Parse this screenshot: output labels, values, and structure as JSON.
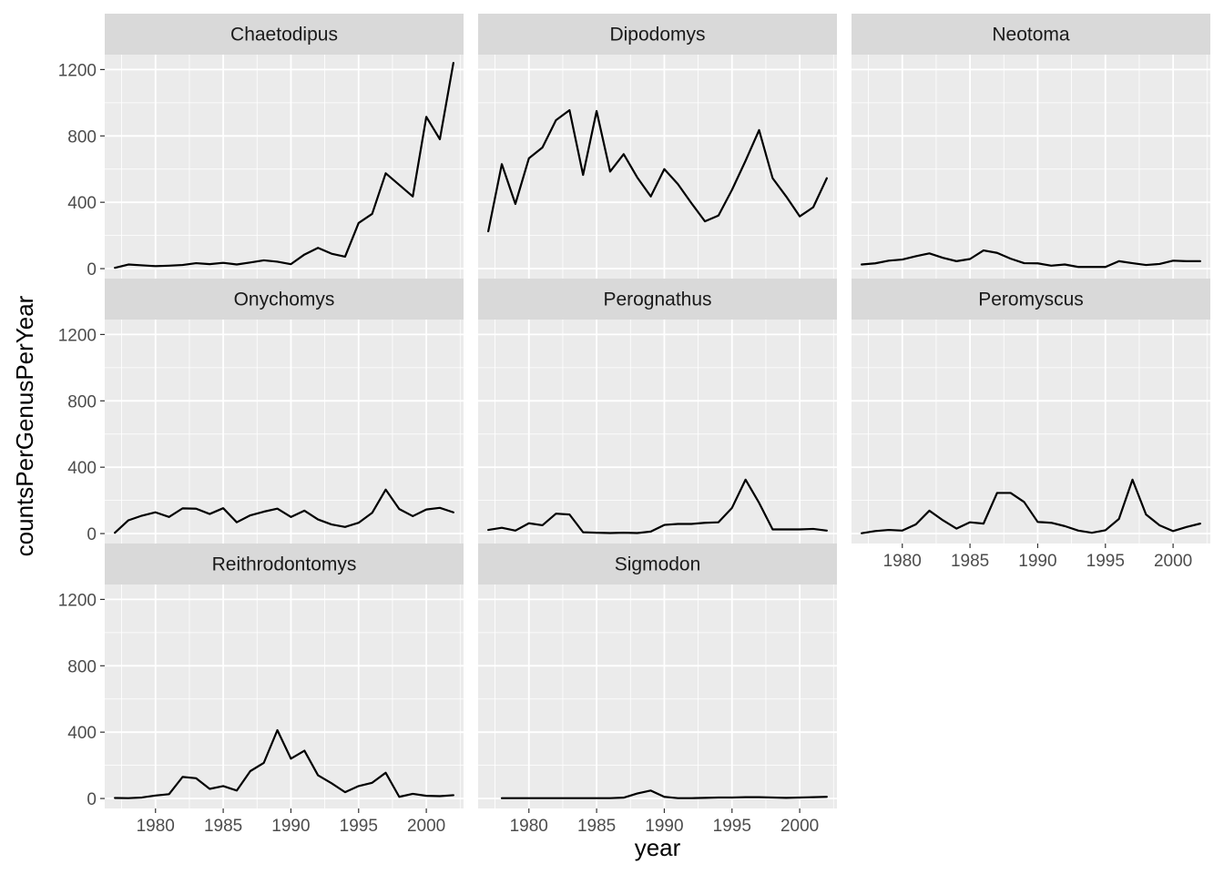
{
  "chart_data": {
    "type": "line",
    "facet_by": "genus",
    "xlabel": "year",
    "ylabel": "countsPerGenusPerYear",
    "xlim": [
      1976.25,
      2002.75
    ],
    "ylim": [
      -60,
      1290
    ],
    "xticks": [
      1980,
      1985,
      1990,
      1995,
      2000
    ],
    "yticks": [
      0,
      400,
      800,
      1200
    ],
    "grid": true,
    "legend": "none",
    "colors": {
      "panel_background": "#ebebeb",
      "strip_background": "#d9d9d9",
      "gridline": "#ffffff",
      "line": "#000000",
      "tick_text": "#4d4d4d",
      "tick_mark": "#333333"
    },
    "series": [
      {
        "name": "Chaetodipus",
        "x": [
          1977,
          1978,
          1979,
          1980,
          1981,
          1982,
          1983,
          1984,
          1985,
          1986,
          1987,
          1988,
          1989,
          1990,
          1991,
          1992,
          1993,
          1994,
          1995,
          1996,
          1997,
          1998,
          1999,
          2000,
          2001,
          2002
        ],
        "values": [
          5,
          25,
          20,
          15,
          18,
          22,
          33,
          27,
          35,
          25,
          37,
          50,
          42,
          27,
          85,
          125,
          90,
          72,
          275,
          330,
          575,
          505,
          435,
          915,
          780,
          1240
        ]
      },
      {
        "name": "Dipodomys",
        "x": [
          1977,
          1978,
          1979,
          1980,
          1981,
          1982,
          1983,
          1984,
          1985,
          1986,
          1987,
          1988,
          1989,
          1990,
          1991,
          1992,
          1993,
          1994,
          1995,
          1996,
          1997,
          1998,
          1999,
          2000,
          2001,
          2002
        ],
        "values": [
          225,
          630,
          390,
          665,
          730,
          895,
          955,
          565,
          950,
          585,
          690,
          550,
          435,
          600,
          510,
          395,
          285,
          320,
          475,
          650,
          835,
          545,
          435,
          315,
          370,
          545
        ]
      },
      {
        "name": "Neotoma",
        "x": [
          1977,
          1978,
          1979,
          1980,
          1981,
          1982,
          1983,
          1984,
          1985,
          1986,
          1987,
          1988,
          1989,
          1990,
          1991,
          1992,
          1993,
          1994,
          1995,
          1996,
          1997,
          1998,
          1999,
          2000,
          2001,
          2002
        ],
        "values": [
          25,
          32,
          48,
          55,
          75,
          92,
          65,
          45,
          58,
          110,
          95,
          60,
          33,
          32,
          18,
          25,
          10,
          10,
          10,
          45,
          33,
          22,
          28,
          48,
          45,
          45
        ]
      },
      {
        "name": "Onychomys",
        "x": [
          1977,
          1978,
          1979,
          1980,
          1981,
          1982,
          1983,
          1984,
          1985,
          1986,
          1987,
          1988,
          1989,
          1990,
          1991,
          1992,
          1993,
          1994,
          1995,
          1996,
          1997,
          1998,
          1999,
          2000,
          2001,
          2002
        ],
        "values": [
          5,
          80,
          108,
          128,
          100,
          152,
          150,
          118,
          153,
          68,
          110,
          132,
          150,
          100,
          138,
          85,
          55,
          40,
          65,
          125,
          265,
          148,
          105,
          145,
          155,
          128
        ]
      },
      {
        "name": "Perognathus",
        "x": [
          1977,
          1978,
          1979,
          1980,
          1981,
          1982,
          1983,
          1984,
          1985,
          1986,
          1987,
          1988,
          1989,
          1990,
          1991,
          1992,
          1993,
          1994,
          1995,
          1996,
          1997,
          1998,
          1999,
          2000,
          2001,
          2002
        ],
        "values": [
          22,
          35,
          18,
          62,
          50,
          120,
          115,
          8,
          5,
          3,
          5,
          3,
          12,
          52,
          58,
          58,
          65,
          68,
          155,
          325,
          185,
          25,
          25,
          25,
          28,
          18
        ]
      },
      {
        "name": "Peromyscus",
        "x": [
          1977,
          1978,
          1979,
          1980,
          1981,
          1982,
          1983,
          1984,
          1985,
          1986,
          1987,
          1988,
          1989,
          1990,
          1991,
          1992,
          1993,
          1994,
          1995,
          1996,
          1997,
          1998,
          1999,
          2000,
          2001,
          2002
        ],
        "values": [
          2,
          15,
          22,
          18,
          55,
          138,
          80,
          30,
          68,
          60,
          245,
          245,
          190,
          70,
          65,
          45,
          18,
          5,
          20,
          88,
          325,
          115,
          50,
          15,
          40,
          60
        ]
      },
      {
        "name": "Reithrodontomys",
        "x": [
          1977,
          1978,
          1979,
          1980,
          1981,
          1982,
          1983,
          1984,
          1985,
          1986,
          1987,
          1988,
          1989,
          1990,
          1991,
          1992,
          1993,
          1994,
          1995,
          1996,
          1997,
          1998,
          1999,
          2000,
          2001,
          2002
        ],
        "values": [
          3,
          2,
          6,
          18,
          26,
          130,
          122,
          58,
          75,
          48,
          165,
          215,
          412,
          240,
          288,
          140,
          92,
          38,
          75,
          95,
          155,
          10,
          28,
          16,
          14,
          20
        ]
      },
      {
        "name": "Sigmodon",
        "x": [
          1978,
          1979,
          1980,
          1981,
          1982,
          1983,
          1984,
          1985,
          1986,
          1987,
          1988,
          1989,
          1990,
          1991,
          1992,
          1993,
          1994,
          1995,
          1996,
          1997,
          1998,
          1999,
          2000,
          2001,
          2002
        ],
        "values": [
          2,
          2,
          2,
          2,
          2,
          2,
          2,
          2,
          2,
          5,
          30,
          48,
          10,
          2,
          2,
          4,
          6,
          6,
          8,
          8,
          6,
          4,
          6,
          8,
          10
        ]
      }
    ]
  }
}
